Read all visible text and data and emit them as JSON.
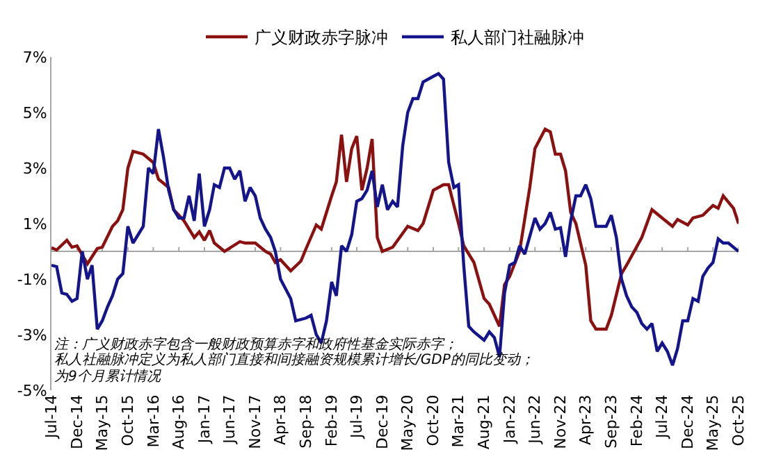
{
  "chart_data": {
    "type": "line",
    "line_style": "solid",
    "marker": "none",
    "grid": false,
    "legend": "top",
    "ylim": [
      -5,
      7
    ],
    "yticks": [
      {
        "value": -5,
        "label": "-5%"
      },
      {
        "value": -3,
        "label": "-3%"
      },
      {
        "value": -1,
        "label": "-1%"
      },
      {
        "value": 1,
        "label": "1%"
      },
      {
        "value": 3,
        "label": "3%"
      },
      {
        "value": 5,
        "label": "5%"
      },
      {
        "value": 7,
        "label": "7%"
      }
    ],
    "xlim": [
      "2014-07",
      "2025-10"
    ],
    "xticks": [
      {
        "value": "2014-07",
        "label": "Jul-14"
      },
      {
        "value": "2014-12",
        "label": "Dec-14"
      },
      {
        "value": "2015-05",
        "label": "May-15"
      },
      {
        "value": "2015-10",
        "label": "Oct-15"
      },
      {
        "value": "2016-03",
        "label": "Mar-16"
      },
      {
        "value": "2016-08",
        "label": "Aug-16"
      },
      {
        "value": "2017-01",
        "label": "Jan-17"
      },
      {
        "value": "2017-06",
        "label": "Jun-17"
      },
      {
        "value": "2017-11",
        "label": "Nov-17"
      },
      {
        "value": "2018-04",
        "label": "Apr-18"
      },
      {
        "value": "2018-09",
        "label": "Sep-18"
      },
      {
        "value": "2019-02",
        "label": "Feb-19"
      },
      {
        "value": "2019-07",
        "label": "Jul-19"
      },
      {
        "value": "2019-12",
        "label": "Dec-19"
      },
      {
        "value": "2020-05",
        "label": "May-20"
      },
      {
        "value": "2020-10",
        "label": "Oct-20"
      },
      {
        "value": "2021-03",
        "label": "Mar-21"
      },
      {
        "value": "2021-08",
        "label": "Aug-21"
      },
      {
        "value": "2022-01",
        "label": "Jan-22"
      },
      {
        "value": "2022-06",
        "label": "Jun-22"
      },
      {
        "value": "2022-11",
        "label": "Nov-22"
      },
      {
        "value": "2023-04",
        "label": "Apr-23"
      },
      {
        "value": "2023-09",
        "label": "Sep-23"
      },
      {
        "value": "2024-02",
        "label": "Feb-24"
      },
      {
        "value": "2024-07",
        "label": "Jul-24"
      },
      {
        "value": "2024-12",
        "label": "Dec-24"
      },
      {
        "value": "2025-05",
        "label": "May-25"
      },
      {
        "value": "2025-10",
        "label": "Oct-25"
      }
    ],
    "ref_lines": [
      {
        "axis": "y",
        "value": 0,
        "color": "#a6a6a6"
      }
    ],
    "annotations": [
      "注：广义财政赤字包含一般财政预算赤字和政府性基金实际赤字；",
      "私人社融脉冲定义为私人部门直接和间接融资规模累计增长/GDP的同比变动；",
      "为9个月累计情况"
    ],
    "series": [
      {
        "name": "广义财政赤字脉冲",
        "color": "#8b1010",
        "x": [
          "2014-07",
          "2014-08",
          "2014-10",
          "2014-11",
          "2014-12",
          "2015-02",
          "2015-04",
          "2015-05",
          "2015-07",
          "2015-08",
          "2015-09",
          "2015-10",
          "2015-11",
          "2016-01",
          "2016-03",
          "2016-04",
          "2016-06",
          "2016-07",
          "2016-09",
          "2016-11",
          "2016-12",
          "2017-01",
          "2017-02",
          "2017-03",
          "2017-05",
          "2017-08",
          "2017-09",
          "2017-11",
          "2018-01",
          "2018-02",
          "2018-03",
          "2018-04",
          "2018-06",
          "2018-08",
          "2018-09",
          "2018-11",
          "2018-12",
          "2019-02",
          "2019-03",
          "2019-04",
          "2019-05",
          "2019-06",
          "2019-07",
          "2019-08",
          "2019-09",
          "2019-10",
          "2019-11",
          "2019-12",
          "2020-02",
          "2020-05",
          "2020-07",
          "2020-08",
          "2020-10",
          "2020-12",
          "2021-01",
          "2021-03",
          "2021-04",
          "2021-06",
          "2021-08",
          "2021-09",
          "2021-11",
          "2021-12",
          "2022-01",
          "2022-03",
          "2022-05",
          "2022-06",
          "2022-08",
          "2022-09",
          "2022-10",
          "2022-11",
          "2022-12",
          "2023-01",
          "2023-02",
          "2023-04",
          "2023-05",
          "2023-06",
          "2023-08",
          "2023-09",
          "2023-11",
          "2023-12",
          "2024-03",
          "2024-05",
          "2024-07",
          "2024-09",
          "2024-10",
          "2024-12",
          "2025-01",
          "2025-03",
          "2025-05",
          "2025-06",
          "2025-07",
          "2025-09",
          "2025-10"
        ],
        "values": [
          0.13,
          0.05,
          0.4,
          0.15,
          0.2,
          -0.45,
          0.1,
          0.15,
          0.9,
          1.1,
          1.5,
          3.0,
          3.6,
          3.5,
          3.2,
          2.6,
          2.3,
          1.5,
          1.1,
          0.5,
          0.7,
          0.4,
          0.75,
          0.3,
          0.0,
          0.35,
          0.3,
          0.3,
          0.0,
          -0.1,
          -0.4,
          -0.3,
          -0.7,
          -0.35,
          0.1,
          0.95,
          0.8,
          2.0,
          2.5,
          4.2,
          2.5,
          3.7,
          4.15,
          2.2,
          3.0,
          4.05,
          0.5,
          0.0,
          0.15,
          0.9,
          0.75,
          1.0,
          2.2,
          2.4,
          2.4,
          1.0,
          0.2,
          -0.4,
          -1.7,
          -1.9,
          -2.7,
          -1.2,
          -0.9,
          0.0,
          2.3,
          3.7,
          4.4,
          4.3,
          3.5,
          3.5,
          2.9,
          1.4,
          1.0,
          -0.5,
          -2.5,
          -2.8,
          -2.8,
          -2.3,
          -0.8,
          -0.5,
          0.5,
          1.5,
          1.2,
          0.9,
          1.15,
          0.95,
          1.2,
          1.3,
          1.65,
          1.55,
          2.0,
          1.55,
          1.0
        ]
      },
      {
        "name": "私人部门社融脉冲",
        "color": "#14148c",
        "x": [
          "2014-07",
          "2014-08",
          "2014-09",
          "2014-10",
          "2014-11",
          "2014-12",
          "2015-01",
          "2015-02",
          "2015-03",
          "2015-04",
          "2015-05",
          "2015-06",
          "2015-07",
          "2015-08",
          "2015-09",
          "2015-10",
          "2015-11",
          "2016-01",
          "2016-02",
          "2016-03",
          "2016-04",
          "2016-05",
          "2016-06",
          "2016-07",
          "2016-08",
          "2016-09",
          "2016-10",
          "2016-11",
          "2016-12",
          "2017-01",
          "2017-02",
          "2017-03",
          "2017-04",
          "2017-05",
          "2017-06",
          "2017-07",
          "2017-08",
          "2017-09",
          "2017-10",
          "2017-11",
          "2017-12",
          "2018-01",
          "2018-02",
          "2018-03",
          "2018-04",
          "2018-06",
          "2018-07",
          "2018-09",
          "2018-10",
          "2018-11",
          "2018-12",
          "2019-01",
          "2019-02",
          "2019-03",
          "2019-04",
          "2019-05",
          "2019-06",
          "2019-07",
          "2019-08",
          "2019-09",
          "2019-10",
          "2019-11",
          "2019-12",
          "2020-01",
          "2020-02",
          "2020-03",
          "2020-04",
          "2020-05",
          "2020-06",
          "2020-07",
          "2020-08",
          "2020-10",
          "2020-11",
          "2020-12",
          "2021-01",
          "2021-02",
          "2021-03",
          "2021-04",
          "2021-05",
          "2021-06",
          "2021-08",
          "2021-09",
          "2021-10",
          "2021-11",
          "2021-12",
          "2022-01",
          "2022-02",
          "2022-03",
          "2022-04",
          "2022-06",
          "2022-07",
          "2022-08",
          "2022-09",
          "2022-10",
          "2022-11",
          "2022-12",
          "2023-01",
          "2023-02",
          "2023-03",
          "2023-04",
          "2023-05",
          "2023-06",
          "2023-08",
          "2023-09",
          "2023-10",
          "2023-11",
          "2023-12",
          "2024-01",
          "2024-02",
          "2024-03",
          "2024-04",
          "2024-05",
          "2024-06",
          "2024-07",
          "2024-08",
          "2024-09",
          "2024-10",
          "2024-11",
          "2024-12",
          "2025-01",
          "2025-02",
          "2025-03",
          "2025-04",
          "2025-05",
          "2025-06",
          "2025-07",
          "2025-08",
          "2025-10"
        ],
        "values": [
          -0.5,
          -0.55,
          -1.5,
          -1.55,
          -1.8,
          -1.7,
          0.0,
          -1.0,
          -0.5,
          -2.8,
          -2.5,
          -2.0,
          -1.6,
          -1.0,
          -0.8,
          0.9,
          0.3,
          0.9,
          3.0,
          2.8,
          4.4,
          3.4,
          2.2,
          1.5,
          1.2,
          1.2,
          2.0,
          1.1,
          2.8,
          0.9,
          1.5,
          2.4,
          2.3,
          3.0,
          3.0,
          2.6,
          2.9,
          1.8,
          2.3,
          2.0,
          1.2,
          0.8,
          0.5,
          0.0,
          -1.0,
          -1.7,
          -2.5,
          -2.4,
          -2.3,
          -3.0,
          -3.3,
          -2.5,
          -1.1,
          -1.6,
          0.2,
          0.0,
          0.6,
          1.8,
          1.9,
          2.2,
          2.9,
          1.6,
          2.4,
          1.5,
          1.8,
          1.6,
          3.8,
          5.0,
          5.5,
          5.5,
          6.1,
          6.3,
          6.4,
          6.2,
          3.2,
          2.3,
          2.4,
          -0.5,
          -2.7,
          -2.9,
          -3.2,
          -2.9,
          -3.1,
          -3.8,
          -1.5,
          -0.5,
          -0.4,
          0.2,
          -0.1,
          1.2,
          0.8,
          1.0,
          1.4,
          0.8,
          0.85,
          -0.2,
          1.1,
          2.0,
          2.0,
          2.4,
          1.9,
          0.9,
          0.9,
          1.3,
          0.5,
          -1.0,
          -1.6,
          -2.0,
          -2.2,
          -2.6,
          -2.8,
          -2.6,
          -3.6,
          -3.3,
          -3.6,
          -4.1,
          -3.5,
          -2.5,
          -2.5,
          -1.7,
          -1.8,
          -0.9,
          -0.6,
          -0.4,
          0.45,
          0.3,
          0.3,
          0.0
        ]
      }
    ]
  }
}
